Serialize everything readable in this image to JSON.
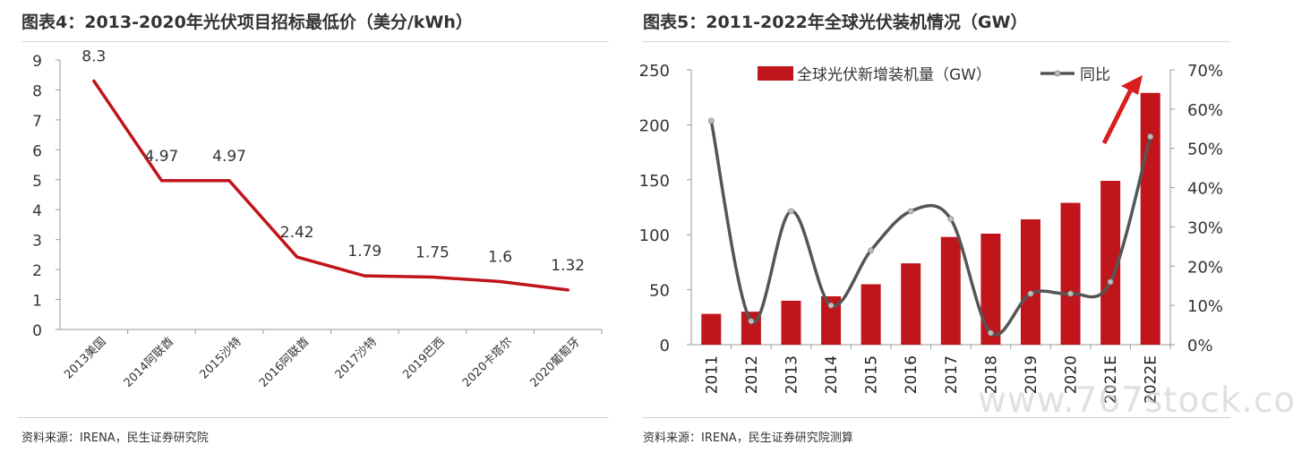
{
  "left": {
    "title": "图表4：2013-2020年光伏项目招标最低价（美分/kWh）",
    "source": "资料来源：IRENA，民生证券研究院"
  },
  "right": {
    "title": "图表5：2011-2022年全球光伏装机情况（GW）",
    "source": "资料来源：IRENA，民生证券研究院测算"
  },
  "watermark": "www.767stock.com",
  "colors": {
    "bar": "#c0151b",
    "line_left": "#c0151b",
    "line_right": "#555555",
    "arrow": "#d81e1e"
  },
  "chart_data": [
    {
      "type": "line",
      "categories": [
        "2013美国",
        "2014阿联酋",
        "2015沙特",
        "2016阿联酋",
        "2017沙特",
        "2019巴西",
        "2020卡塔尔",
        "2020葡萄牙"
      ],
      "values": [
        8.3,
        4.97,
        4.97,
        2.42,
        1.79,
        1.75,
        1.6,
        1.32
      ],
      "data_labels": [
        "8.3",
        "4.97",
        "4.97",
        "2.42",
        "1.79",
        "1.75",
        "1.6",
        "1.32"
      ],
      "yticks": [
        "0",
        "1",
        "2",
        "3",
        "4",
        "5",
        "6",
        "7",
        "8",
        "9"
      ],
      "ylim": [
        0,
        9
      ],
      "grid": false
    },
    {
      "type": "bar",
      "categories": [
        "2011",
        "2012",
        "2013",
        "2014",
        "2015",
        "2016",
        "2017",
        "2018",
        "2019",
        "2020",
        "2021E",
        "2022E"
      ],
      "series": [
        {
          "name": "全球光伏新增装机量（GW）",
          "type": "bar",
          "axis": "left",
          "values": [
            28,
            30,
            40,
            44,
            55,
            74,
            98,
            101,
            114,
            129,
            149,
            229
          ]
        },
        {
          "name": "同比",
          "type": "line",
          "axis": "right",
          "values": [
            57,
            6,
            34,
            10,
            24,
            34,
            32,
            3,
            13,
            13,
            16,
            53
          ]
        }
      ],
      "yticks_left": [
        "0",
        "50",
        "100",
        "150",
        "200",
        "250"
      ],
      "yticks_right": [
        "0%",
        "10%",
        "20%",
        "30%",
        "40%",
        "50%",
        "60%",
        "70%"
      ],
      "ylim_left": [
        0,
        250
      ],
      "ylim_right": [
        0,
        70
      ],
      "legend": "top",
      "grid": false
    }
  ]
}
